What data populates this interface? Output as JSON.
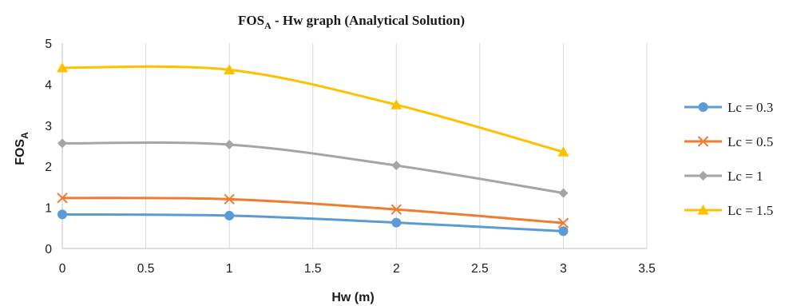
{
  "chart_data": {
    "type": "line",
    "title": "FOS",
    "title_subscript": "A",
    "title_rest": " - Hw graph (Analytical Solution)",
    "xlabel": "Hw (m)",
    "ylabel": "FOS",
    "ylabel_subscript": "A",
    "xlim": [
      0,
      3.5
    ],
    "ylim": [
      0,
      5
    ],
    "xticks": [
      "0",
      "0.5",
      "1",
      "1.5",
      "2",
      "2.5",
      "3",
      "3.5"
    ],
    "yticks": [
      "0",
      "1",
      "2",
      "3",
      "4",
      "5"
    ],
    "grid": "vertical",
    "smooth": true,
    "legend_position": "right",
    "x": [
      0,
      1,
      2,
      3
    ],
    "series": [
      {
        "name": "Lc = 0.3",
        "values": [
          0.83,
          0.8,
          0.63,
          0.42
        ],
        "color": "#5B9BD5",
        "marker": "circle"
      },
      {
        "name": "Lc = 0.5",
        "values": [
          1.23,
          1.2,
          0.95,
          0.62
        ],
        "color": "#ED7D31",
        "marker": "cross"
      },
      {
        "name": "Lc = 1",
        "values": [
          2.56,
          2.53,
          2.02,
          1.35
        ],
        "color": "#A5A5A5",
        "marker": "diamond"
      },
      {
        "name": "Lc = 1.5",
        "values": [
          4.4,
          4.35,
          3.5,
          2.35
        ],
        "color": "#FFC000",
        "marker": "triangle"
      }
    ]
  }
}
